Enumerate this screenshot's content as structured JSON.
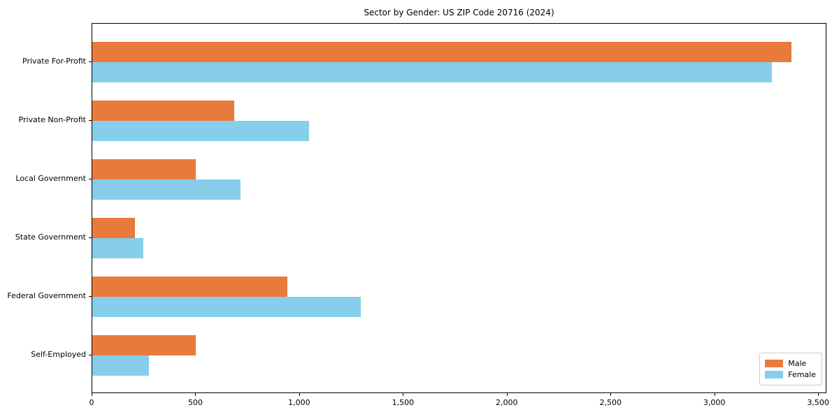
{
  "chart_data": {
    "type": "bar",
    "orientation": "horizontal",
    "title": "Sector by Gender: US ZIP Code 20716 (2024)",
    "categories": [
      "Private For-Profit",
      "Private Non-Profit",
      "Local Government",
      "State Government",
      "Federal Government",
      "Self-Employed"
    ],
    "series": [
      {
        "name": "Male",
        "color": "#E87A3C",
        "values": [
          3375,
          685,
          500,
          205,
          940,
          500
        ]
      },
      {
        "name": "Female",
        "color": "#87CEEB",
        "values": [
          3280,
          1045,
          715,
          245,
          1295,
          275
        ]
      }
    ],
    "xlabel": "",
    "ylabel": "",
    "xlim": [
      0,
      3540
    ],
    "xticks": [
      0,
      500,
      1000,
      1500,
      2000,
      2500,
      3000,
      3500
    ],
    "xtick_labels": [
      "0",
      "500",
      "1,000",
      "1,500",
      "2,000",
      "2,500",
      "3,000",
      "3,500"
    ],
    "grid": false,
    "legend_position": "lower right"
  }
}
